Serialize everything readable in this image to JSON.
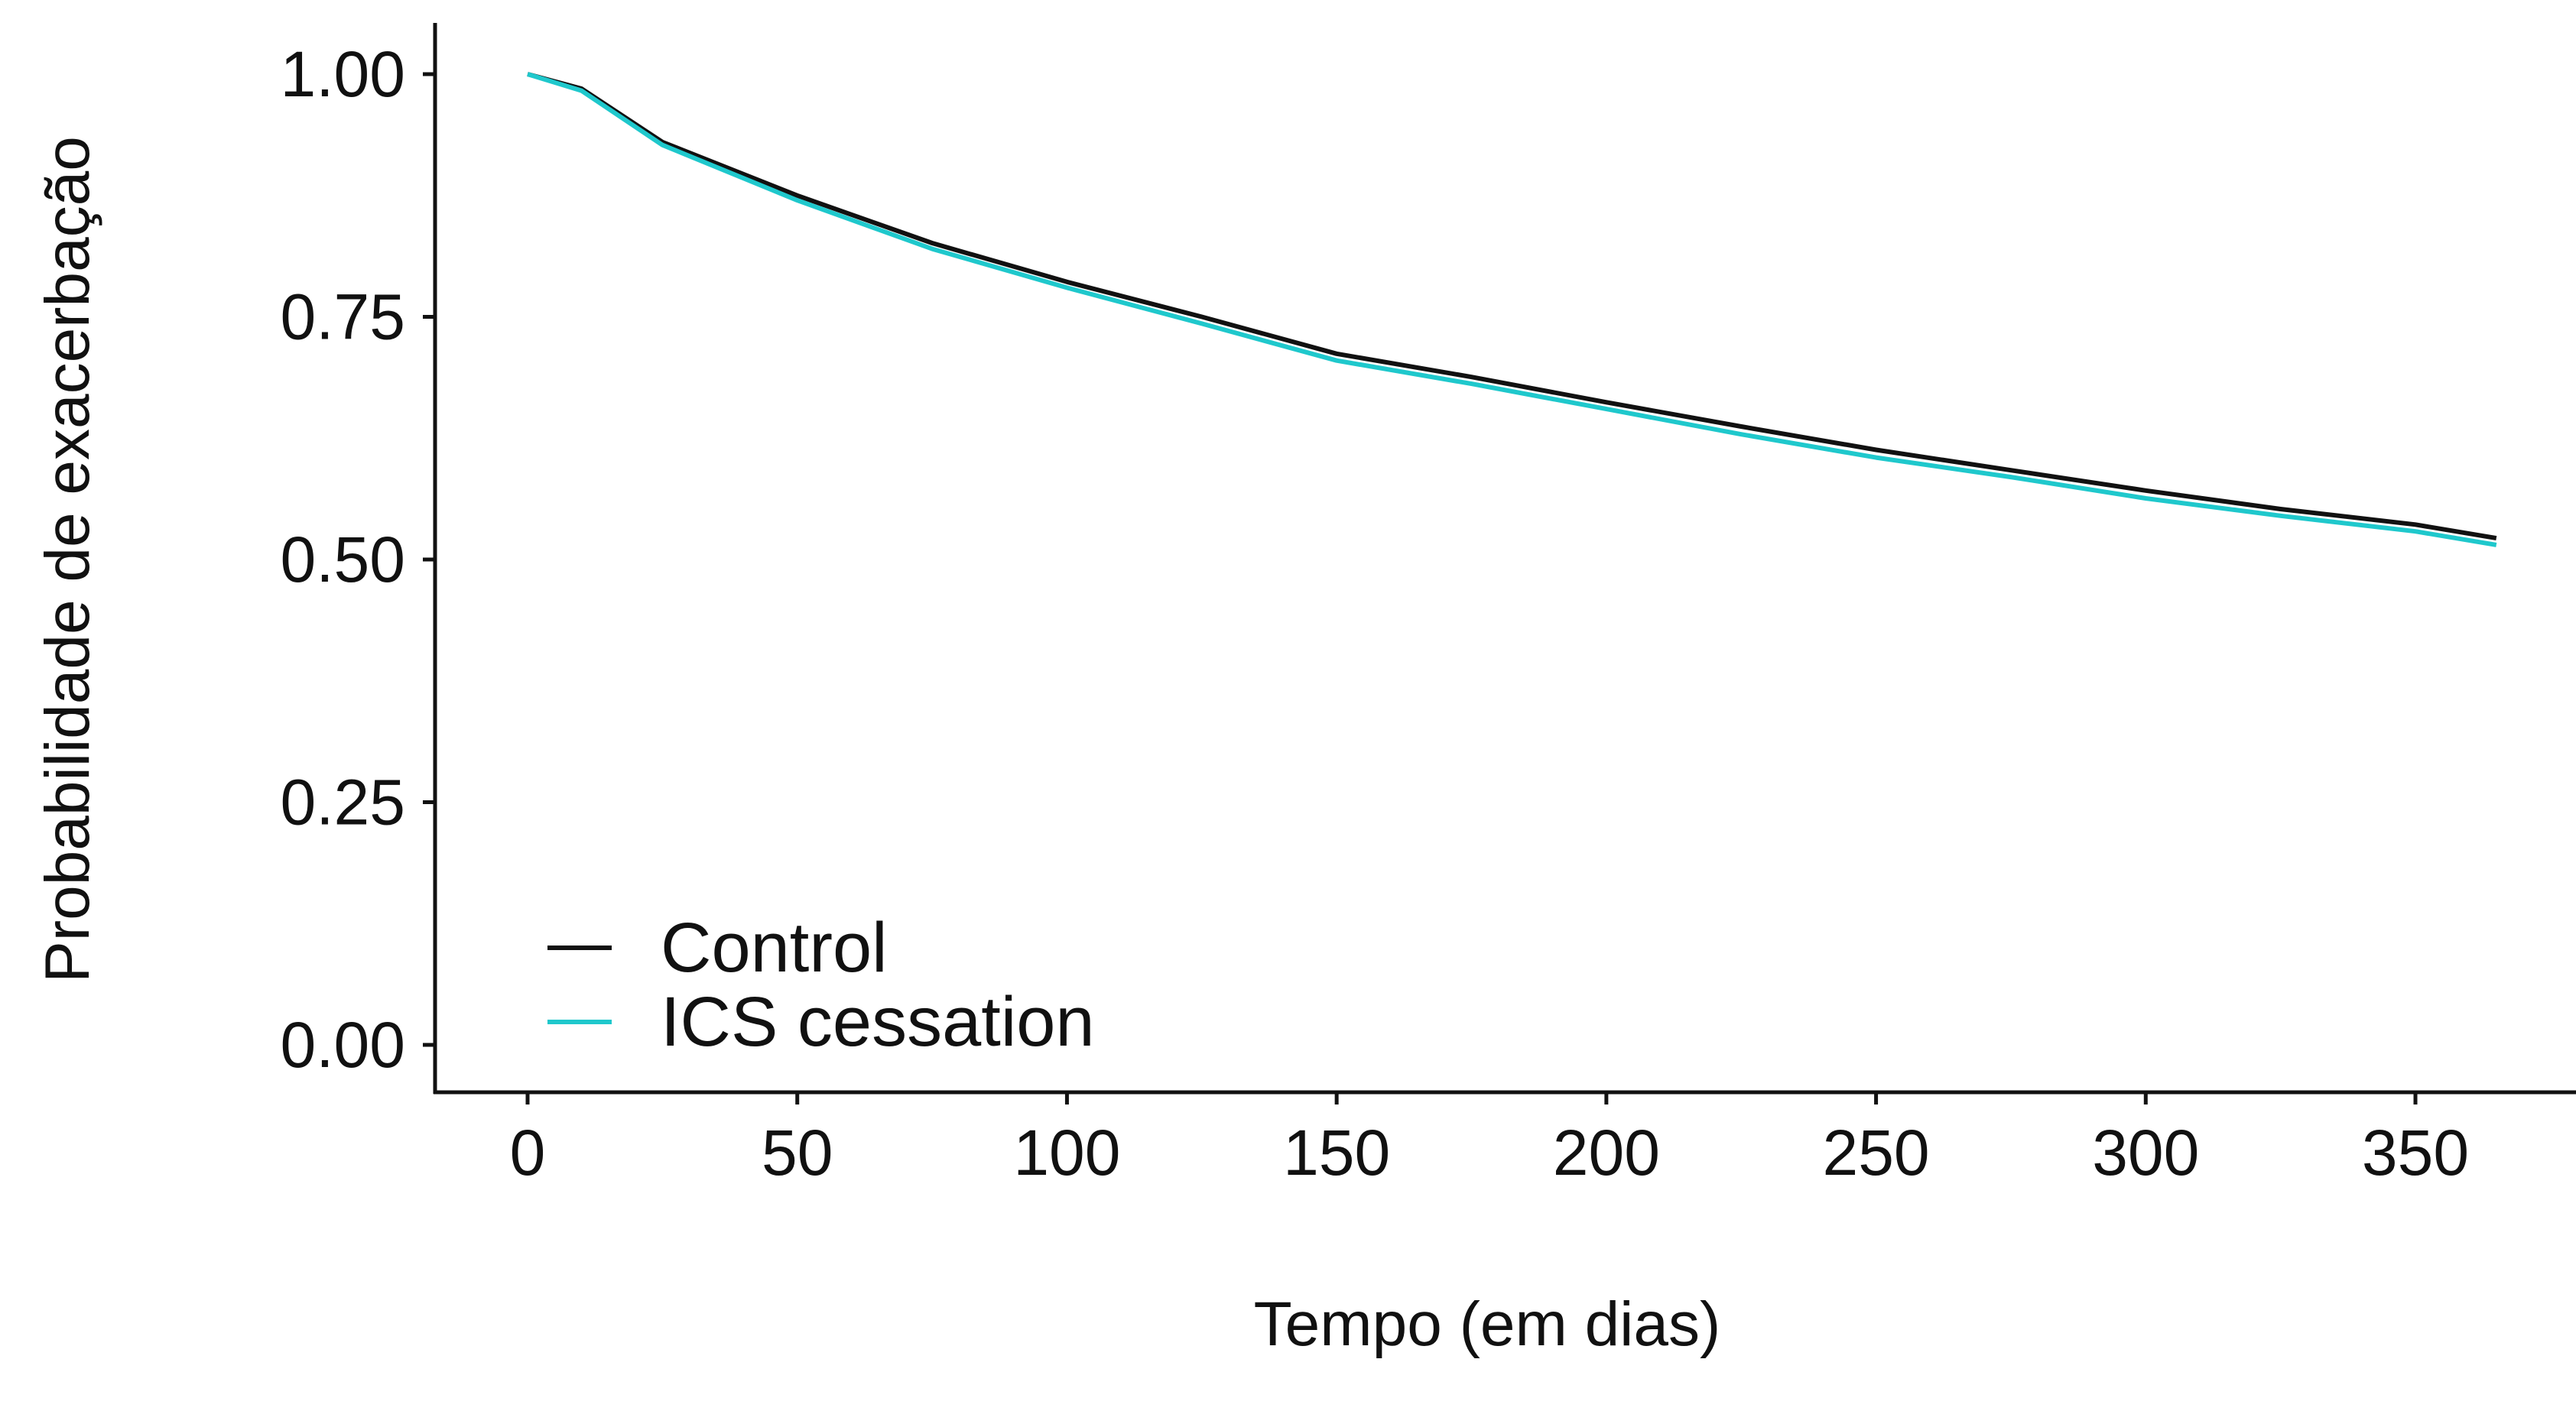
{
  "chart_data": {
    "type": "line",
    "title": "",
    "xlabel": "Tempo (em dias)",
    "ylabel": "Probabilidade de exacerbação",
    "xlim": [
      0,
      365
    ],
    "ylim": [
      0,
      1
    ],
    "xticks": [
      "0",
      "50",
      "100",
      "150",
      "200",
      "250",
      "300",
      "350"
    ],
    "yticks": [
      "0.00",
      "0.25",
      "0.50",
      "0.75",
      "1.00"
    ],
    "grid": false,
    "legend_placement": "bottom-left",
    "x": [
      0,
      10,
      25,
      50,
      75,
      100,
      125,
      150,
      175,
      200,
      225,
      250,
      275,
      300,
      325,
      350,
      365
    ],
    "series": [
      {
        "name": "Control",
        "color": "#111111",
        "values": [
          1.0,
          0.985,
          0.93,
          0.875,
          0.826,
          0.786,
          0.75,
          0.712,
          0.688,
          0.662,
          0.637,
          0.613,
          0.592,
          0.571,
          0.552,
          0.536,
          0.522
        ]
      },
      {
        "name": "ICS cessation",
        "color": "#1fc8cc",
        "values": [
          1.0,
          0.983,
          0.927,
          0.87,
          0.82,
          0.78,
          0.743,
          0.705,
          0.681,
          0.655,
          0.629,
          0.605,
          0.585,
          0.563,
          0.545,
          0.529,
          0.515
        ]
      }
    ]
  }
}
